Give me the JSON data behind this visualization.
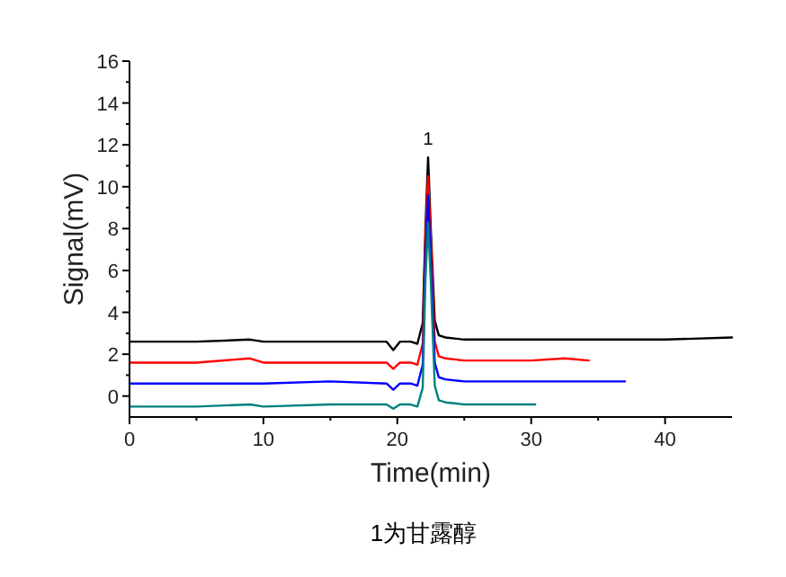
{
  "chart_data": {
    "type": "line",
    "xlabel": "Time(min)",
    "ylabel": "Signal(mV)",
    "xlim": [
      0,
      45
    ],
    "ylim": [
      -1,
      16
    ],
    "xticks": [
      0,
      10,
      20,
      30,
      40
    ],
    "yticks": [
      0,
      2,
      4,
      6,
      8,
      10,
      12,
      14,
      16
    ],
    "grid": false,
    "annotations": [
      "1",
      "1为甘露醇"
    ],
    "series": [
      {
        "color": "#000000",
        "x": [
          0,
          5,
          9,
          10,
          15,
          19.2,
          19.7,
          20.2,
          21,
          21.5,
          21.9,
          22.1,
          22.3,
          22.5,
          22.8,
          23.1,
          23.6,
          25,
          30,
          35,
          40,
          45
        ],
        "values": [
          2.6,
          2.6,
          2.7,
          2.6,
          2.6,
          2.6,
          2.2,
          2.6,
          2.6,
          2.5,
          3.5,
          8,
          11.4,
          8,
          3.6,
          2.9,
          2.8,
          2.7,
          2.7,
          2.7,
          2.7,
          2.8
        ]
      },
      {
        "color": "#ff0000",
        "x": [
          0,
          5,
          9,
          10,
          15,
          19.2,
          19.7,
          20.2,
          21,
          21.5,
          21.9,
          22.1,
          22.3,
          22.5,
          22.8,
          23.1,
          23.6,
          25,
          30,
          32.5,
          34.3
        ],
        "values": [
          1.6,
          1.6,
          1.8,
          1.6,
          1.6,
          1.6,
          1.3,
          1.6,
          1.6,
          1.5,
          2.5,
          7.5,
          10.5,
          7.5,
          2.6,
          1.9,
          1.8,
          1.7,
          1.7,
          1.8,
          1.7
        ]
      },
      {
        "color": "#0000ff",
        "x": [
          0,
          5,
          9,
          10,
          15,
          19.2,
          19.7,
          20.2,
          21,
          21.5,
          21.9,
          22.1,
          22.3,
          22.5,
          22.8,
          23.1,
          23.6,
          25,
          30,
          37
        ],
        "values": [
          0.6,
          0.6,
          0.6,
          0.6,
          0.7,
          0.6,
          0.3,
          0.6,
          0.6,
          0.5,
          1.5,
          6.5,
          9.6,
          6.5,
          1.6,
          0.9,
          0.8,
          0.7,
          0.7,
          0.7
        ]
      },
      {
        "color": "#008080",
        "x": [
          0,
          5,
          9,
          10,
          15,
          19.2,
          19.7,
          20.2,
          21,
          21.5,
          21.9,
          22.1,
          22.3,
          22.5,
          22.8,
          23.1,
          23.6,
          25,
          30.3
        ],
        "values": [
          -0.5,
          -0.5,
          -0.4,
          -0.5,
          -0.4,
          -0.4,
          -0.6,
          -0.4,
          -0.4,
          -0.5,
          0.4,
          5.5,
          8.3,
          5.5,
          0.5,
          -0.2,
          -0.3,
          -0.4,
          -0.4
        ]
      }
    ]
  }
}
